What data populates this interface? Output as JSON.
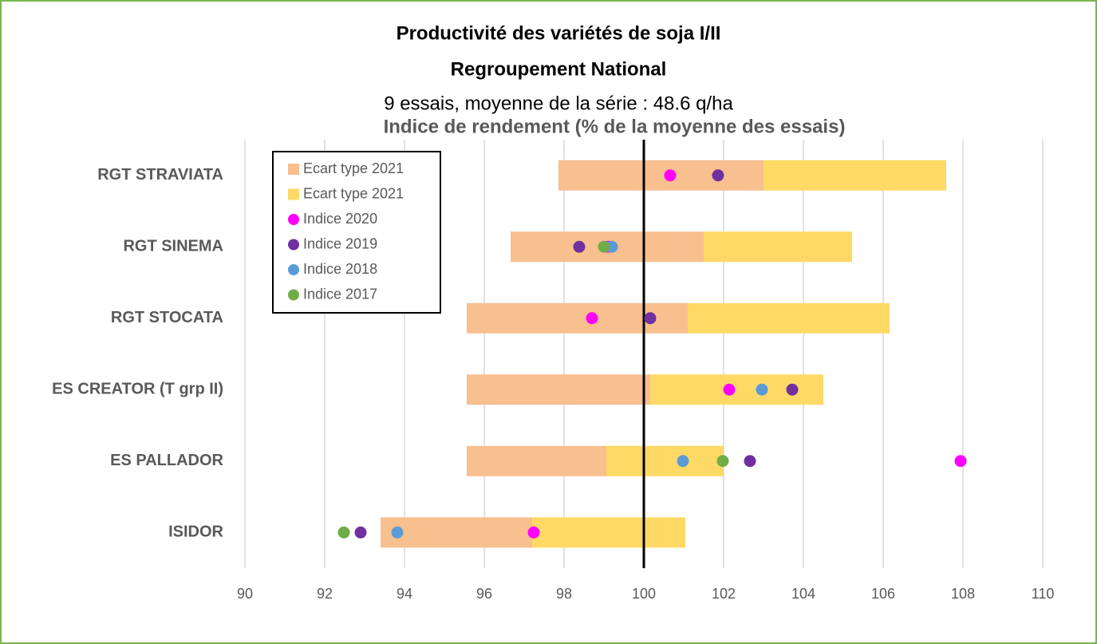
{
  "chart_data": {
    "type": "floating-bar-dots",
    "title": [
      "Productivité des variétés de soja I/II",
      "Regroupement National"
    ],
    "subtitle": "9 essais, moyenne de la série : 48.6 q/ha",
    "x_axis_label": "Indice de rendement (% de la moyenne des essais)",
    "categories": [
      "RGT STRAVIATA",
      "RGT SINEMA",
      "RGT STOCATA",
      "ES CREATOR (T grp II)",
      "ES PALLADOR",
      "ISIDOR"
    ],
    "bar_series": [
      {
        "name": "Ecart type 2021",
        "color": "#f8bf8f",
        "values": [
          [
            97.86,
            103.0
          ],
          [
            96.66,
            101.5
          ],
          [
            95.56,
            101.1
          ],
          [
            95.56,
            100.16
          ],
          [
            95.56,
            99.06
          ],
          [
            93.4,
            97.2
          ]
        ]
      },
      {
        "name": "Ecart type 2021",
        "color": "#ffd966",
        "values": [
          [
            103.0,
            107.58
          ],
          [
            101.5,
            105.22
          ],
          [
            101.1,
            106.16
          ],
          [
            100.16,
            104.5
          ],
          [
            99.06,
            102.0
          ],
          [
            97.2,
            101.04
          ]
        ]
      }
    ],
    "dot_series": [
      {
        "name": "Indice 2020",
        "color": "#ff00ff",
        "values": [
          100.66,
          99.1,
          98.7,
          102.14,
          107.94,
          97.24
        ]
      },
      {
        "name": "Indice 2019",
        "color": "#7030a0",
        "values": [
          101.86,
          98.38,
          100.16,
          103.72,
          102.66,
          92.9
        ]
      },
      {
        "name": "Indice 2018",
        "color": "#5b9bd5",
        "values": [
          null,
          99.2,
          null,
          102.96,
          100.98,
          93.82
        ]
      },
      {
        "name": "Indice 2017",
        "color": "#70ad47",
        "values": [
          null,
          99.0,
          null,
          null,
          101.98,
          92.48
        ]
      }
    ],
    "reference_line": 100,
    "xlim": [
      90,
      110
    ],
    "xticks": [
      90,
      92,
      94,
      96,
      98,
      100,
      102,
      104,
      106,
      108,
      110
    ],
    "grid": true
  }
}
